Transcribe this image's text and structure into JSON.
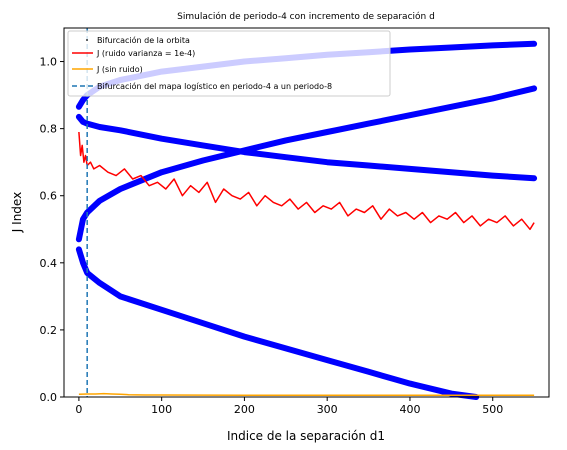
{
  "chart_data": {
    "type": "line",
    "title": "Simulación de periodo-4 con incremento de separación d",
    "xlabel": "Indice de la separación d1",
    "ylabel": "J Index",
    "xlim": [
      -18,
      568
    ],
    "ylim": [
      0.0,
      1.1
    ],
    "xticks": [
      0,
      100,
      200,
      300,
      400,
      500
    ],
    "yticks": [
      0.0,
      0.2,
      0.4,
      0.6,
      0.8,
      1.0
    ],
    "xtick_labels": [
      "0",
      "100",
      "200",
      "300",
      "400",
      "500"
    ],
    "ytick_labels": [
      "0.0",
      "0.2",
      "0.4",
      "0.6",
      "0.8",
      "1.0"
    ],
    "grid": false,
    "legend_position": "upper-left",
    "colors": {
      "bifurcation": "#0000ff",
      "j_noise": "#ff0000",
      "j_clean": "#ffa500",
      "vline": "#1f77b4"
    },
    "series": [
      {
        "name": "Bifurcación de la orbita",
        "kind": "scatter",
        "branches": [
          {
            "x": [
              0,
              5,
              10,
              25,
              50,
              100,
              150,
              200,
              250,
              300,
              350,
              400,
              450,
              500,
              550
            ],
            "y": [
              0.865,
              0.885,
              0.9,
              0.925,
              0.945,
              0.97,
              0.985,
              1.0,
              1.01,
              1.02,
              1.028,
              1.036,
              1.042,
              1.048,
              1.053
            ]
          },
          {
            "x": [
              0,
              5,
              10,
              25,
              50,
              100,
              150,
              200,
              250,
              300,
              350,
              400,
              450,
              500,
              550
            ],
            "y": [
              0.835,
              0.82,
              0.815,
              0.805,
              0.795,
              0.77,
              0.75,
              0.73,
              0.715,
              0.7,
              0.69,
              0.68,
              0.67,
              0.66,
              0.652
            ]
          },
          {
            "x": [
              0,
              5,
              10,
              25,
              50,
              100,
              150,
              200,
              250,
              300,
              350,
              400,
              450,
              500,
              550
            ],
            "y": [
              0.47,
              0.53,
              0.55,
              0.585,
              0.62,
              0.67,
              0.705,
              0.735,
              0.765,
              0.79,
              0.815,
              0.84,
              0.865,
              0.89,
              0.92
            ]
          },
          {
            "x": [
              0,
              5,
              10,
              25,
              50,
              100,
              150,
              200,
              250,
              300,
              350,
              400,
              450,
              480
            ],
            "y": [
              0.44,
              0.4,
              0.37,
              0.34,
              0.3,
              0.26,
              0.22,
              0.18,
              0.145,
              0.11,
              0.075,
              0.04,
              0.01,
              0.0
            ]
          }
        ]
      },
      {
        "name": "J (ruido varianza = 1e-4)",
        "kind": "line",
        "x": [
          0,
          2,
          4,
          6,
          8,
          10,
          14,
          18,
          25,
          35,
          45,
          55,
          65,
          75,
          85,
          95,
          105,
          115,
          125,
          135,
          145,
          155,
          165,
          175,
          185,
          195,
          205,
          215,
          225,
          235,
          245,
          255,
          265,
          275,
          285,
          295,
          305,
          315,
          325,
          335,
          345,
          355,
          365,
          375,
          385,
          395,
          405,
          415,
          425,
          435,
          445,
          455,
          465,
          475,
          485,
          495,
          505,
          515,
          525,
          535,
          545,
          550
        ],
        "y": [
          0.79,
          0.72,
          0.75,
          0.7,
          0.72,
          0.69,
          0.7,
          0.68,
          0.69,
          0.67,
          0.66,
          0.68,
          0.65,
          0.66,
          0.63,
          0.64,
          0.62,
          0.65,
          0.6,
          0.63,
          0.61,
          0.64,
          0.58,
          0.62,
          0.6,
          0.59,
          0.61,
          0.57,
          0.6,
          0.58,
          0.57,
          0.59,
          0.56,
          0.58,
          0.55,
          0.57,
          0.56,
          0.58,
          0.54,
          0.56,
          0.55,
          0.57,
          0.53,
          0.56,
          0.54,
          0.55,
          0.53,
          0.55,
          0.52,
          0.54,
          0.53,
          0.55,
          0.52,
          0.54,
          0.51,
          0.53,
          0.52,
          0.54,
          0.51,
          0.53,
          0.5,
          0.52
        ]
      },
      {
        "name": "J (sin ruido)",
        "kind": "line",
        "x": [
          0,
          10,
          20,
          30,
          40,
          50,
          60,
          80,
          100,
          200,
          300,
          400,
          500,
          550
        ],
        "y": [
          0.008,
          0.009,
          0.009,
          0.01,
          0.009,
          0.008,
          0.007,
          0.006,
          0.006,
          0.005,
          0.005,
          0.005,
          0.005,
          0.005
        ]
      },
      {
        "name": "Bifurcación del mapa logístico en periodo-4 a un periodo-8",
        "kind": "vline",
        "x": 10
      }
    ]
  }
}
